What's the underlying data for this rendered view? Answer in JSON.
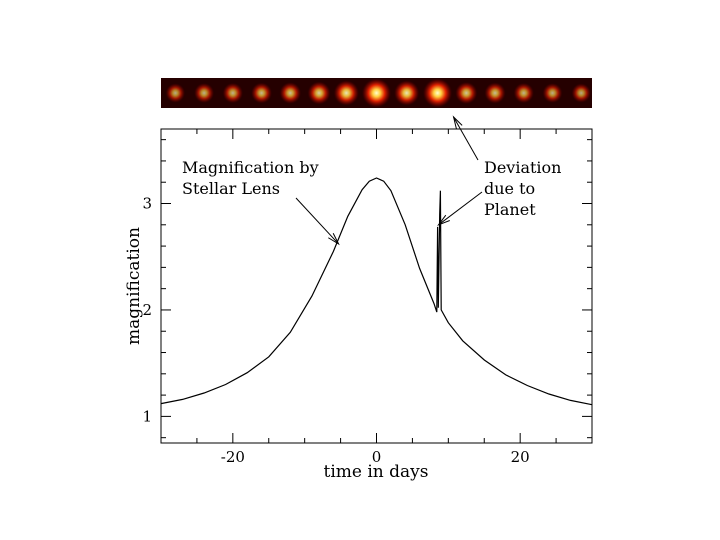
{
  "chart_data": {
    "type": "line",
    "title": "",
    "xlabel": "time in days",
    "ylabel": "magnification",
    "xlim": [
      -30,
      30
    ],
    "ylim": [
      0.75,
      3.7
    ],
    "x_ticks": [
      -20,
      0,
      20
    ],
    "x_tick_labels": [
      "-20",
      "0",
      "20"
    ],
    "y_ticks": [
      1,
      2,
      3
    ],
    "y_tick_labels": [
      "1",
      "2",
      "3"
    ],
    "grid": false,
    "series": [
      {
        "values": [
          [
            -30,
            1.12
          ],
          [
            -27,
            1.16
          ],
          [
            -24,
            1.22
          ],
          [
            -21,
            1.3
          ],
          [
            -18,
            1.41
          ],
          [
            -15,
            1.56
          ],
          [
            -12,
            1.79
          ],
          [
            -9,
            2.13
          ],
          [
            -6,
            2.55
          ],
          [
            -4,
            2.88
          ],
          [
            -2,
            3.13
          ],
          [
            -1,
            3.21
          ],
          [
            0,
            3.24
          ],
          [
            1,
            3.21
          ],
          [
            2,
            3.12
          ],
          [
            4,
            2.8
          ],
          [
            6,
            2.39
          ],
          [
            8,
            2.06
          ],
          [
            8.4,
            1.98
          ],
          [
            8.5,
            2.78
          ],
          [
            8.6,
            2.02
          ],
          [
            8.8,
            2.9
          ],
          [
            8.9,
            3.12
          ],
          [
            9.0,
            2.0
          ],
          [
            10,
            1.88
          ],
          [
            12,
            1.71
          ],
          [
            15,
            1.53
          ],
          [
            18,
            1.39
          ],
          [
            21,
            1.29
          ],
          [
            24,
            1.21
          ],
          [
            27,
            1.15
          ],
          [
            30,
            1.11
          ]
        ]
      }
    ],
    "annotations": [
      {
        "lines": [
          "Magnification by",
          "Stellar Lens"
        ],
        "points_to": [
          -5,
          2.62
        ]
      },
      {
        "lines": [
          "Deviation",
          "due to",
          "Planet"
        ],
        "points_to": [
          8.5,
          2.8
        ]
      }
    ],
    "image_strip": {
      "background": "#250000",
      "blobs": [
        {
          "x": -28.0,
          "intensity": 0.45
        },
        {
          "x": -24.0,
          "intensity": 0.48
        },
        {
          "x": -20.0,
          "intensity": 0.5
        },
        {
          "x": -16.0,
          "intensity": 0.53
        },
        {
          "x": -12.0,
          "intensity": 0.57
        },
        {
          "x": -8.0,
          "intensity": 0.65
        },
        {
          "x": -4.2,
          "intensity": 0.78
        },
        {
          "x": 0.0,
          "intensity": 1.0
        },
        {
          "x": 4.2,
          "intensity": 0.78
        },
        {
          "x": 8.5,
          "intensity": 1.0
        },
        {
          "x": 12.5,
          "intensity": 0.6
        },
        {
          "x": 16.5,
          "intensity": 0.55
        },
        {
          "x": 20.5,
          "intensity": 0.5
        },
        {
          "x": 24.5,
          "intensity": 0.47
        },
        {
          "x": 28.5,
          "intensity": 0.44
        }
      ],
      "arrow_target_x": 8.5
    }
  }
}
